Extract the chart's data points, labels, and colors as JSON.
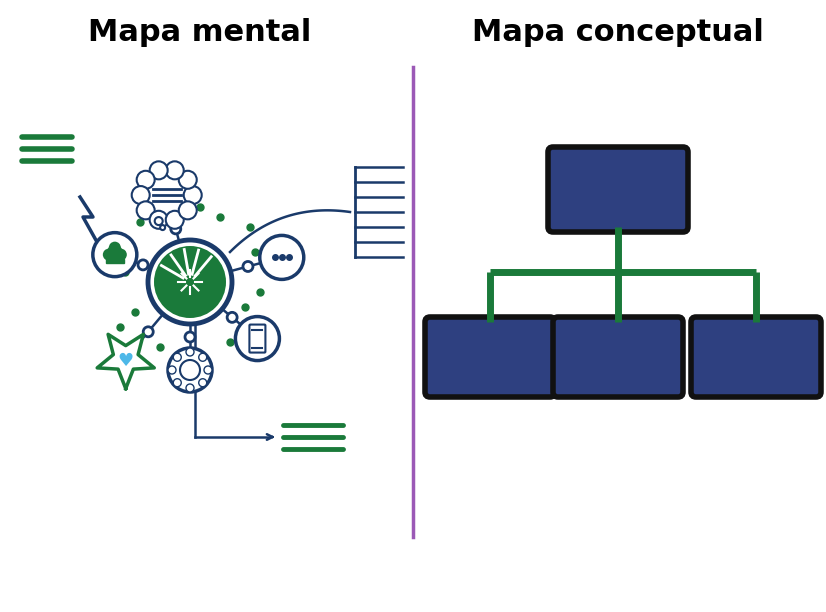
{
  "title_left": "Mapa mental",
  "title_right": "Mapa conceptual",
  "title_fontsize": 22,
  "title_fontweight": "bold",
  "bg_color": "#ffffff",
  "divider_color": "#9b59b6",
  "node_box_color": "#2e4080",
  "node_box_edge_color": "#111111",
  "tree_line_color": "#1a7a3a",
  "mind_dark": "#1a3a6a",
  "mind_green": "#1a7a3a",
  "dot_color": "#1a7a3a",
  "heart_color": "#4db8e8"
}
